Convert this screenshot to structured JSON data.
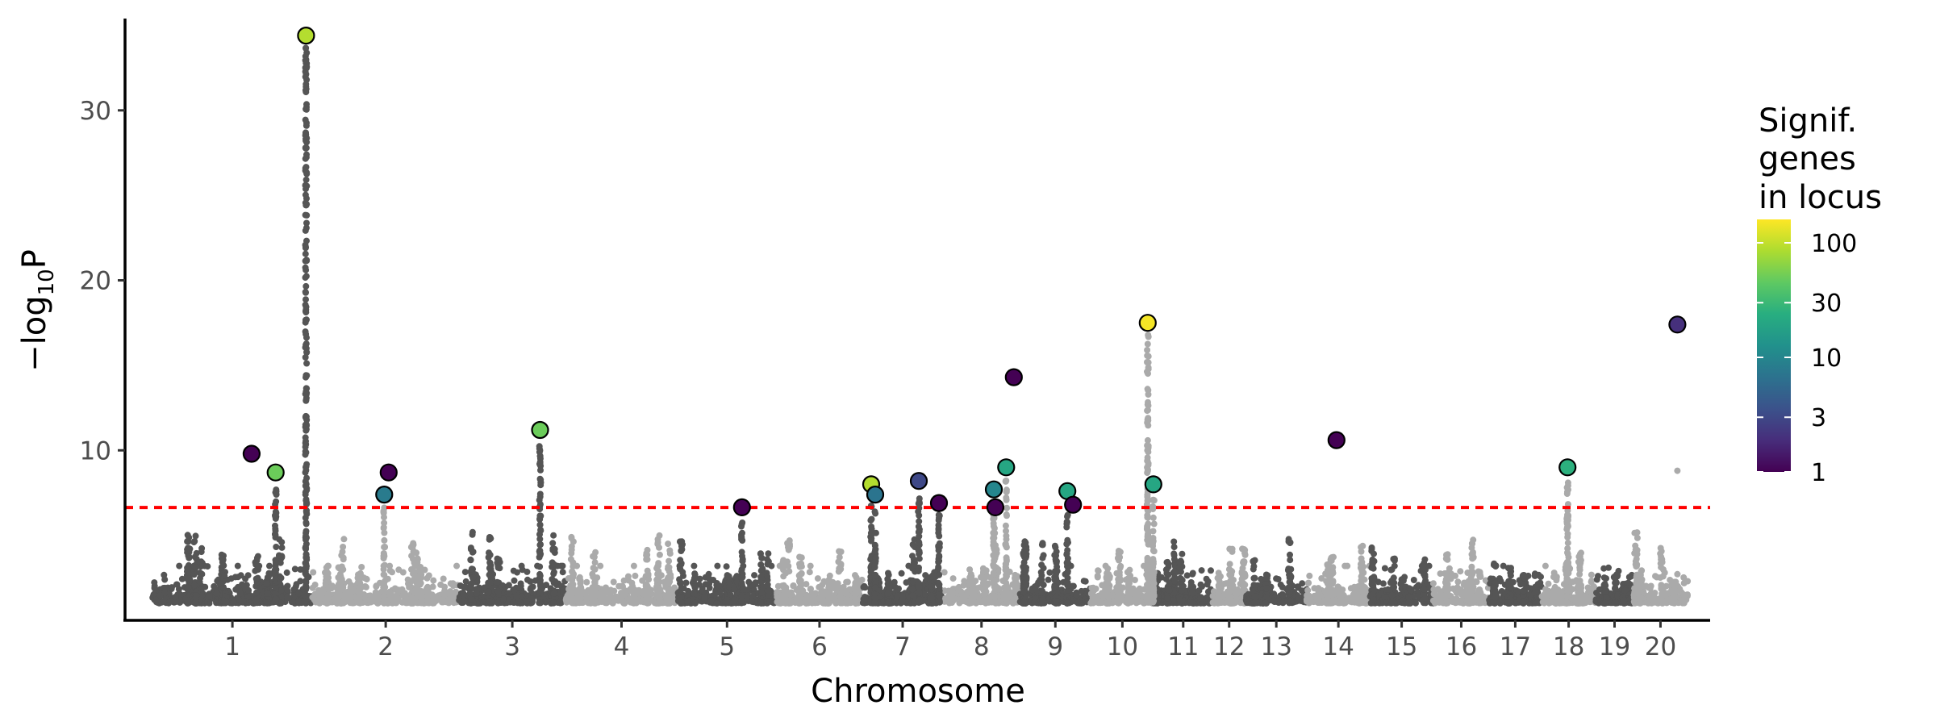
{
  "chart_data": {
    "type": "scatter",
    "subtype": "manhattan",
    "title": "",
    "xlabel": "Chromosome",
    "ylabel_main": "−log",
    "ylabel_sub": "10",
    "ylabel_end": "P",
    "ylim": [
      0,
      35.4
    ],
    "xlim": [
      -22,
      1255
    ],
    "yticks": [
      10,
      20,
      30
    ],
    "grid": false,
    "significance_threshold": 6.64,
    "colors": {
      "odd_chromosome": "#555555",
      "even_chromosome": "#aaaaaa",
      "threshold": "#ff0000",
      "lead_outline": "#000000"
    },
    "chromosomes": [
      {
        "label": "1",
        "relative_length": 129
      },
      {
        "label": "2",
        "relative_length": 118
      },
      {
        "label": "3",
        "relative_length": 86
      },
      {
        "label": "4",
        "relative_length": 90
      },
      {
        "label": "5",
        "relative_length": 80
      },
      {
        "label": "6",
        "relative_length": 69
      },
      {
        "label": "7",
        "relative_length": 65
      },
      {
        "label": "8",
        "relative_length": 62
      },
      {
        "label": "9",
        "relative_length": 57
      },
      {
        "label": "10",
        "relative_length": 51
      },
      {
        "label": "11",
        "relative_length": 47
      },
      {
        "label": "12",
        "relative_length": 27
      },
      {
        "label": "13",
        "relative_length": 49
      },
      {
        "label": "14",
        "relative_length": 51
      },
      {
        "label": "15",
        "relative_length": 51
      },
      {
        "label": "16",
        "relative_length": 45
      },
      {
        "label": "17",
        "relative_length": 42
      },
      {
        "label": "18",
        "relative_length": 44
      },
      {
        "label": "19",
        "relative_length": 30
      },
      {
        "label": "20",
        "relative_length": 44
      }
    ],
    "lead_snps": [
      {
        "chr": 1,
        "pos": 0.62,
        "neglog10p": 9.8,
        "genes": 1,
        "tower": false
      },
      {
        "chr": 1,
        "pos": 0.77,
        "neglog10p": 8.7,
        "genes": 50,
        "tower": true
      },
      {
        "chr": 1,
        "pos": 0.96,
        "neglog10p": 34.4,
        "genes": 90,
        "tower": true
      },
      {
        "chr": 2,
        "pos": 0.49,
        "neglog10p": 7.4,
        "genes": 8,
        "tower": true
      },
      {
        "chr": 2,
        "pos": 0.52,
        "neglog10p": 8.7,
        "genes": 1,
        "tower": false
      },
      {
        "chr": 3,
        "pos": 0.76,
        "neglog10p": 11.2,
        "genes": 50,
        "tower": true
      },
      {
        "chr": 5,
        "pos": 0.65,
        "neglog10p": 6.65,
        "genes": 1,
        "tower": true
      },
      {
        "chr": 7,
        "pos": 0.11,
        "neglog10p": 8.0,
        "genes": 90,
        "tower": true
      },
      {
        "chr": 7,
        "pos": 0.16,
        "neglog10p": 7.4,
        "genes": 7,
        "tower": true
      },
      {
        "chr": 7,
        "pos": 0.7,
        "neglog10p": 8.2,
        "genes": 3,
        "tower": true
      },
      {
        "chr": 7,
        "pos": 0.95,
        "neglog10p": 6.9,
        "genes": 1,
        "tower": true
      },
      {
        "chr": 8,
        "pos": 0.66,
        "neglog10p": 7.7,
        "genes": 10,
        "tower": true
      },
      {
        "chr": 8,
        "pos": 0.68,
        "neglog10p": 6.65,
        "genes": 1,
        "tower": false
      },
      {
        "chr": 8,
        "pos": 0.82,
        "neglog10p": 9.0,
        "genes": 20,
        "tower": true
      },
      {
        "chr": 8,
        "pos": 0.92,
        "neglog10p": 14.3,
        "genes": 1,
        "tower": false
      },
      {
        "chr": 9,
        "pos": 0.67,
        "neglog10p": 7.6,
        "genes": 20,
        "tower": true
      },
      {
        "chr": 9,
        "pos": 0.75,
        "neglog10p": 6.8,
        "genes": 1,
        "tower": false
      },
      {
        "chr": 10,
        "pos": 0.9,
        "neglog10p": 17.5,
        "genes": 150,
        "tower": true
      },
      {
        "chr": 10,
        "pos": 0.99,
        "neglog10p": 8.0,
        "genes": 20,
        "tower": true
      },
      {
        "chr": 14,
        "pos": 0.47,
        "neglog10p": 10.6,
        "genes": 1,
        "tower": false
      },
      {
        "chr": 18,
        "pos": 0.48,
        "neglog10p": 9.0,
        "genes": 25,
        "tower": true
      },
      {
        "chr": 20,
        "pos": 0.81,
        "neglog10p": 17.4,
        "genes": 2,
        "tower": false
      }
    ],
    "other_points": [
      {
        "chr": 20,
        "pos": 0.81,
        "neglog10p": 8.8
      }
    ],
    "legend": {
      "title_lines": [
        "Signif.",
        "genes",
        "in locus"
      ],
      "placement": "right",
      "scale": "log",
      "range": [
        1,
        160
      ],
      "ticks": [
        1,
        3,
        10,
        30,
        100
      ],
      "tick_labels": [
        "1",
        "3",
        "10",
        "30",
        "100"
      ],
      "palette": "viridis"
    }
  }
}
